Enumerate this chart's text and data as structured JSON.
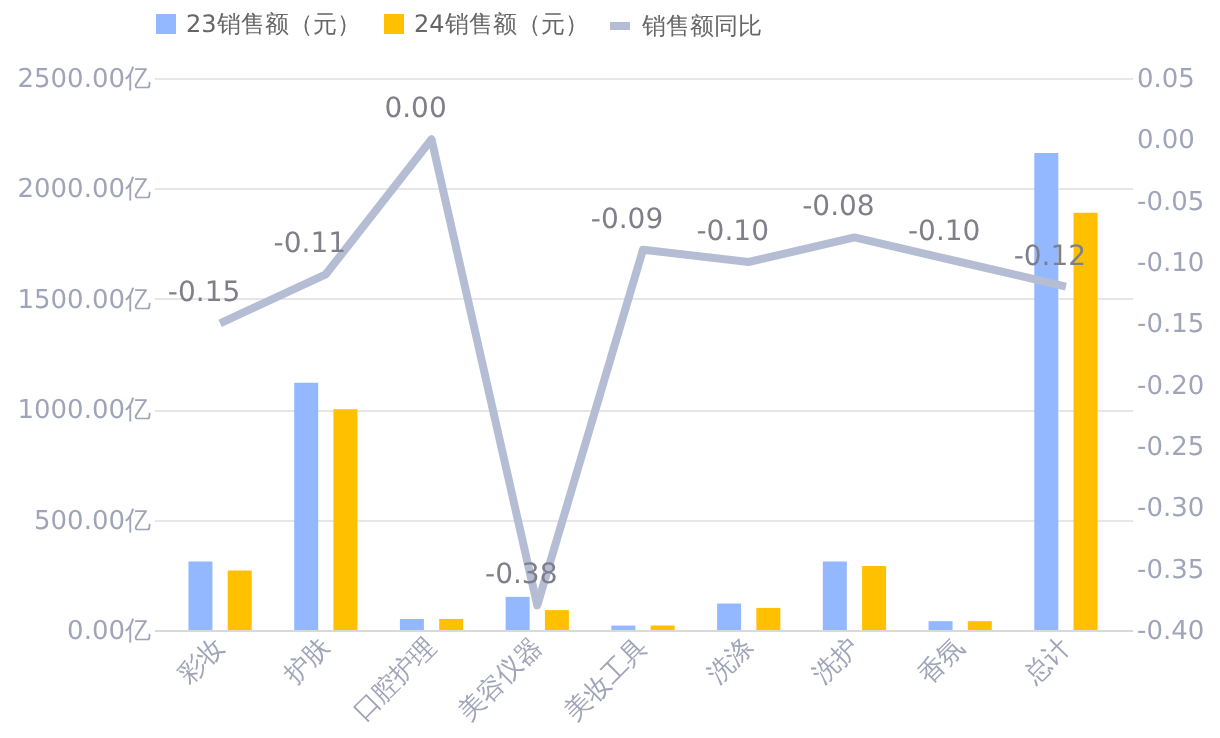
{
  "chart_data": {
    "type": "bar",
    "categories": [
      "彩妆",
      "护肤",
      "口腔护理",
      "美容仪器",
      "美妆工具",
      "洗涤",
      "洗护",
      "香氛",
      "总计"
    ],
    "series": [
      {
        "name": "23销售额（元）",
        "color": "#94b8ff",
        "values": [
          310,
          1120,
          50,
          150,
          20,
          120,
          310,
          40,
          2160
        ]
      },
      {
        "name": "24销售额（元）",
        "color": "#ffc000",
        "values": [
          270,
          1000,
          50,
          90,
          20,
          100,
          290,
          40,
          1890
        ]
      },
      {
        "name": "销售额同比",
        "type": "line",
        "axis": "y2",
        "color": "#b4bdd3",
        "values": [
          -0.15,
          -0.11,
          0.0,
          -0.38,
          -0.09,
          -0.1,
          -0.08,
          -0.1,
          -0.12
        ],
        "value_labels": [
          "-0.15",
          "-0.11",
          "0.00",
          "-0.38",
          "-0.09",
          "-0.10",
          "-0.08",
          "-0.10",
          "-0.12"
        ]
      }
    ],
    "ylim": [
      0,
      2500
    ],
    "yticks": [
      {
        "value": 0,
        "label": "0.00亿"
      },
      {
        "value": 500,
        "label": "500.00亿"
      },
      {
        "value": 1000,
        "label": "1000.00亿"
      },
      {
        "value": 1500,
        "label": "1500.00亿"
      },
      {
        "value": 2000,
        "label": "2000.00亿"
      },
      {
        "value": 2500,
        "label": "2500.00亿"
      }
    ],
    "y2lim": [
      -0.4,
      0.05
    ],
    "y2ticks": [
      {
        "value": -0.4,
        "label": "-0.40"
      },
      {
        "value": -0.35,
        "label": "-0.35"
      },
      {
        "value": -0.3,
        "label": "-0.30"
      },
      {
        "value": -0.25,
        "label": "-0.25"
      },
      {
        "value": -0.2,
        "label": "-0.20"
      },
      {
        "value": -0.15,
        "label": "-0.15"
      },
      {
        "value": -0.1,
        "label": "-0.10"
      },
      {
        "value": -0.05,
        "label": "-0.05"
      },
      {
        "value": 0.0,
        "label": "0.00"
      },
      {
        "value": 0.05,
        "label": "0.05"
      }
    ],
    "grid": "y",
    "legend": "top",
    "marker": "none",
    "line_style": "solid"
  }
}
